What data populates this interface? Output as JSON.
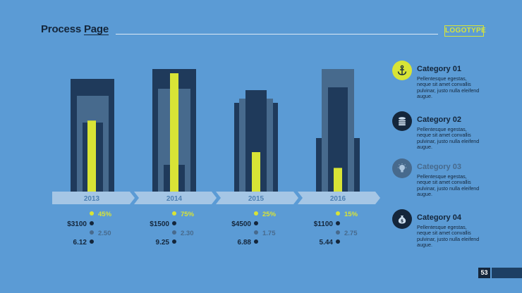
{
  "header": {
    "title_a": "Process ",
    "title_b": "Page",
    "logo": "LOGOTYPE"
  },
  "colors": {
    "background": "#5b9bd5",
    "dark": "#1f3a5b",
    "mid": "#476a8d",
    "light": "#7aa3c8",
    "accent": "#d8e436",
    "text_dark": "#14263b"
  },
  "chart_data": {
    "type": "bar",
    "categories": [
      "2013",
      "2014",
      "2015",
      "2016"
    ],
    "percentages": [
      "45%",
      "75%",
      "25%",
      "15%"
    ],
    "accent_values": [
      45,
      75,
      25,
      15
    ],
    "money": [
      "$3100",
      "$1500",
      "$4500",
      "$1100"
    ],
    "mid_values": [
      "2.50",
      "2.30",
      "1.75",
      "2.75"
    ],
    "low_values": [
      "6.12",
      "9.25",
      "6.88",
      "5.44"
    ]
  },
  "legend": [
    {
      "name": "Category 01",
      "color": "#d8e436",
      "icon": "anchor-icon",
      "desc": "Pellentesque egestas, neque sit amet convallis pulvinar, justo nulla eleifend augue."
    },
    {
      "name": "Category 02",
      "color": "#14263b",
      "icon": "database-icon",
      "desc": "Pellentesque egestas, neque sit amet convallis pulvinar, justo nulla eleifend augue."
    },
    {
      "name": "Category 03",
      "color": "#476a8d",
      "icon": "lightbulb-icon",
      "desc": "Pellentesque egestas, neque sit amet convallis pulvinar, justo nulla eleifend augue."
    },
    {
      "name": "Category 04",
      "color": "#14263b",
      "icon": "money-bag-icon",
      "desc": "Pellentesque egestas, neque sit amet convallis pulvinar, justo nulla eleifend augue."
    }
  ],
  "page_number": "53"
}
